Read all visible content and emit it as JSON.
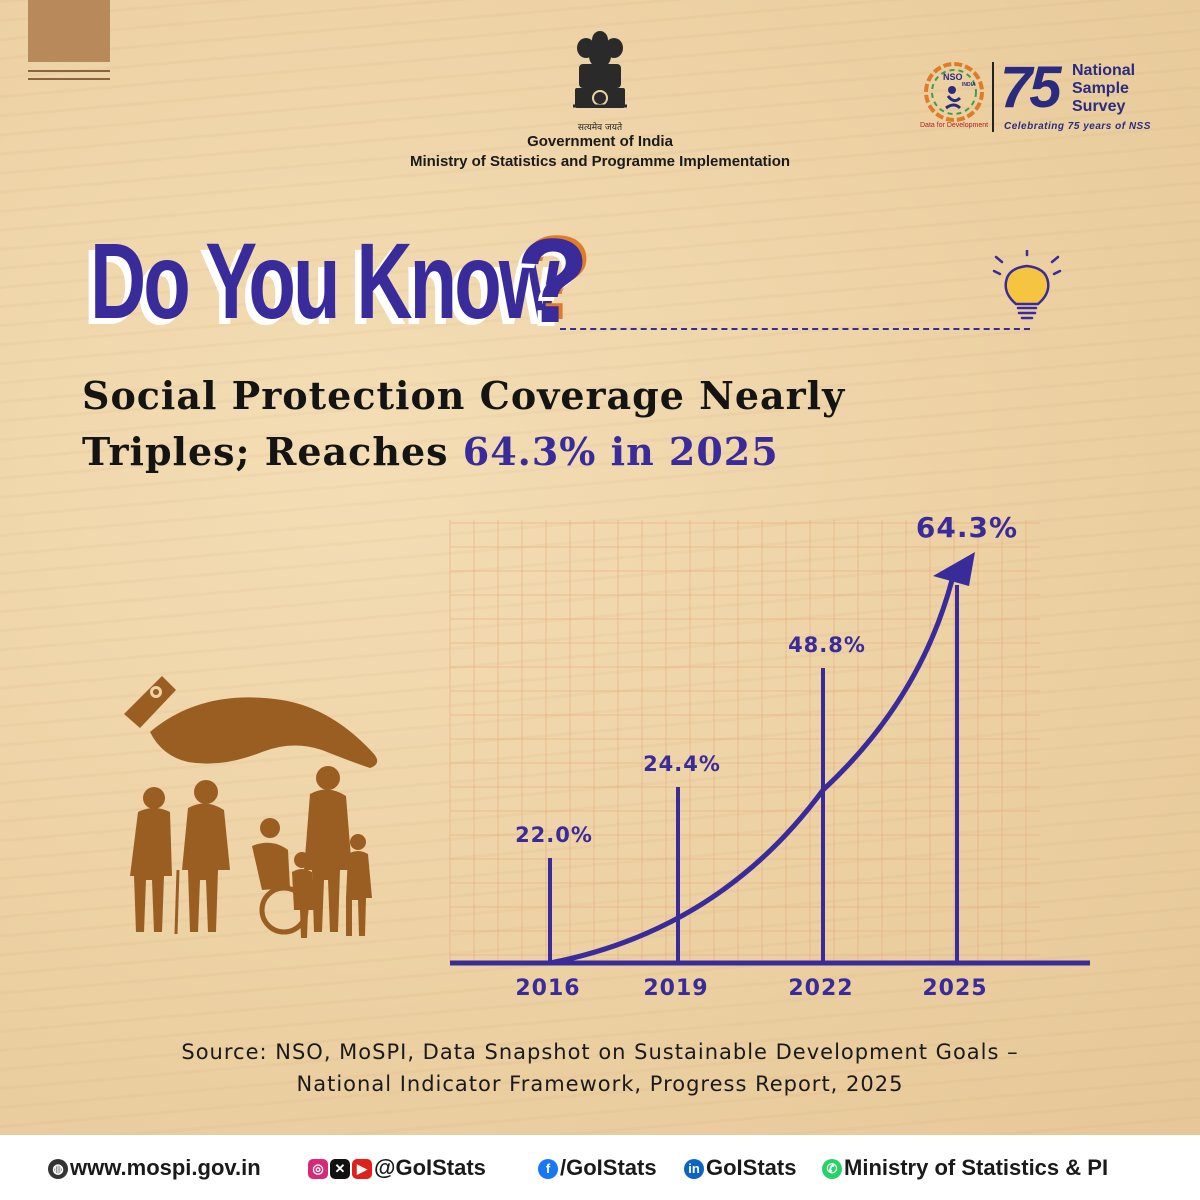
{
  "header": {
    "motto": "सत्यमेव जयते",
    "gov_line1": "Government of India",
    "gov_line2": "Ministry of Statistics and Programme Implementation"
  },
  "nss_logo": {
    "line1": "National",
    "line2": "Sample",
    "line3": "Survey",
    "number": "75",
    "subtitle": "Celebrating 75 years of NSS",
    "nso": "NSO",
    "india": "INDIA",
    "tagline": "Data for Development"
  },
  "banner": {
    "title": "Do You Know",
    "qmark": "?"
  },
  "headline": {
    "line1": "Social Protection Coverage Nearly",
    "line2_prefix": "Triples; Reaches ",
    "line2_highlight": "64.3% in 2025"
  },
  "chart_data": {
    "type": "bar",
    "categories": [
      "2016",
      "2019",
      "2022",
      "2025"
    ],
    "values": [
      22.0,
      24.4,
      48.8,
      64.3
    ],
    "labels": [
      "22.0%",
      "24.4%",
      "48.8%",
      "64.3%"
    ],
    "title": "",
    "xlabel": "",
    "ylabel": "",
    "ylim": [
      0,
      70
    ],
    "grid": true,
    "trend_arrow": true,
    "colors": {
      "bars": "#3a2b9a",
      "grid": "#e8a878"
    }
  },
  "source": {
    "line1": "Source: NSO, MoSPI, Data Snapshot on Sustainable Development Goals –",
    "line2": "National Indicator Framework, Progress Report, 2025"
  },
  "footer": {
    "website": "www.mospi.gov.in",
    "handle1": "@GoIStats",
    "handle2": "/GoIStats",
    "handle3": "GoIStats",
    "whatsapp": "Ministry of Statistics & PI"
  },
  "colors": {
    "accent": "#3a2b9a",
    "background": "#efd3a6",
    "illustration": "#9b5e22"
  }
}
